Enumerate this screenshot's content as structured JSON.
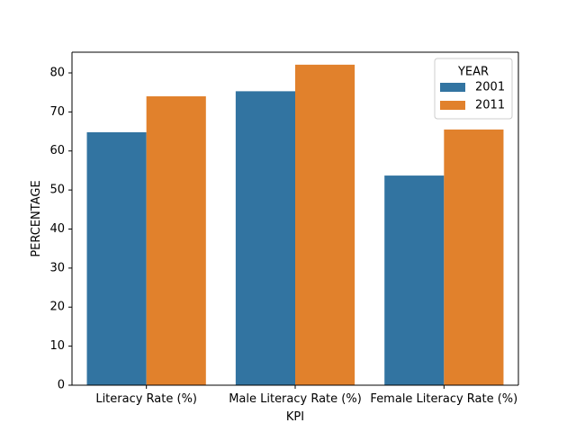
{
  "chart_data": {
    "type": "bar",
    "title": "",
    "xlabel": "KPI",
    "ylabel": "PERCENTAGE",
    "categories": [
      "Literacy Rate (%)",
      "Male Literacy Rate (%)",
      "Female Literacy Rate (%)"
    ],
    "series": [
      {
        "name": "2001",
        "values": [
          64.8,
          75.3,
          53.7
        ],
        "color": "#3274a1"
      },
      {
        "name": "2011",
        "values": [
          74.0,
          82.1,
          65.5
        ],
        "color": "#e1812c"
      }
    ],
    "ylim": [
      0,
      85.3
    ],
    "yticks": [
      0,
      10,
      20,
      30,
      40,
      50,
      60,
      70,
      80
    ],
    "grid": false,
    "legend": {
      "title": "YEAR",
      "placement": "top-right"
    }
  }
}
